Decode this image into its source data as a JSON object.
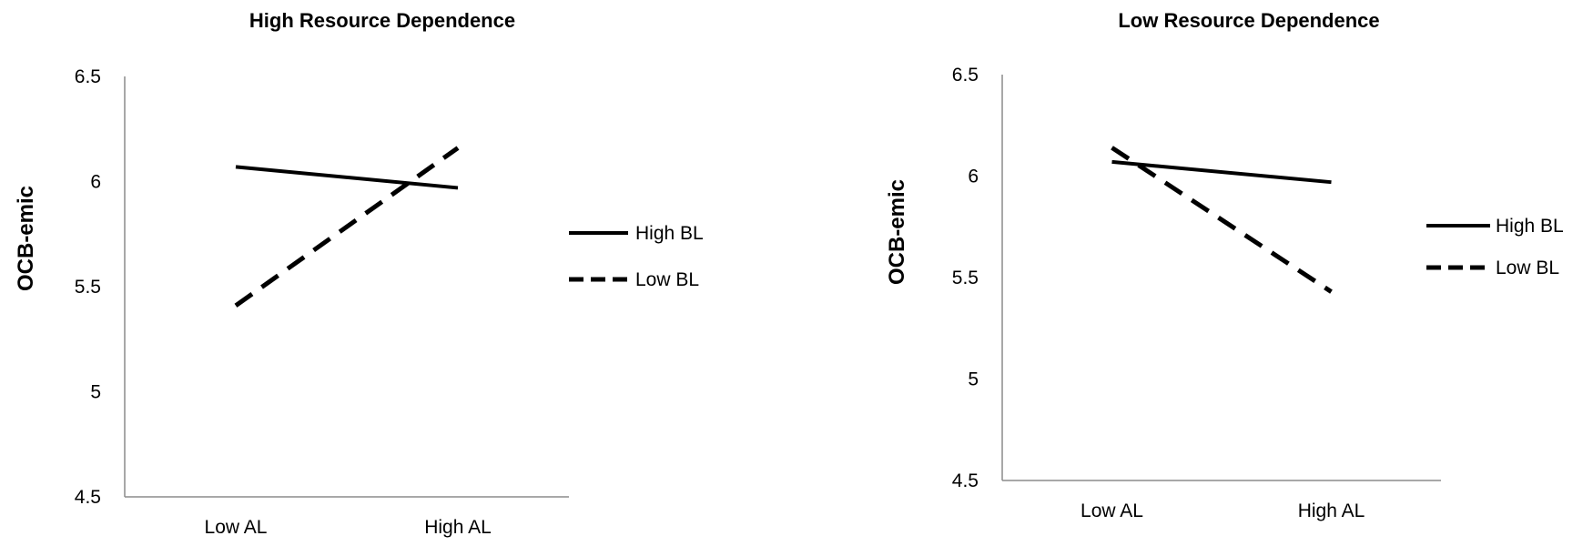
{
  "chart_data": [
    {
      "type": "line",
      "title": "High Resource Dependence",
      "ylabel": "OCB-emic",
      "xlabel": "",
      "categories": [
        "Low AL",
        "High AL"
      ],
      "ylim": [
        4.5,
        6.5
      ],
      "yticks": [
        "4.5",
        "5",
        "5.5",
        "6",
        "6.5"
      ],
      "grid": false,
      "legend_position": "right",
      "series": [
        {
          "name": "High BL",
          "values": [
            6.07,
            5.97
          ],
          "style": "solid",
          "color": "#000000"
        },
        {
          "name": "Low BL",
          "values": [
            5.41,
            6.16
          ],
          "style": "dashed",
          "color": "#000000"
        }
      ]
    },
    {
      "type": "line",
      "title": "Low Resource Dependence",
      "ylabel": "OCB-emic",
      "xlabel": "",
      "categories": [
        "Low AL",
        "High AL"
      ],
      "ylim": [
        4.5,
        6.5
      ],
      "yticks": [
        "4.5",
        "5",
        "5.5",
        "6",
        "6.5"
      ],
      "grid": false,
      "legend_position": "right",
      "series": [
        {
          "name": "High BL",
          "values": [
            6.07,
            5.97
          ],
          "style": "solid",
          "color": "#000000"
        },
        {
          "name": "Low BL",
          "values": [
            6.14,
            5.43
          ],
          "style": "dashed",
          "color": "#000000"
        }
      ]
    }
  ]
}
